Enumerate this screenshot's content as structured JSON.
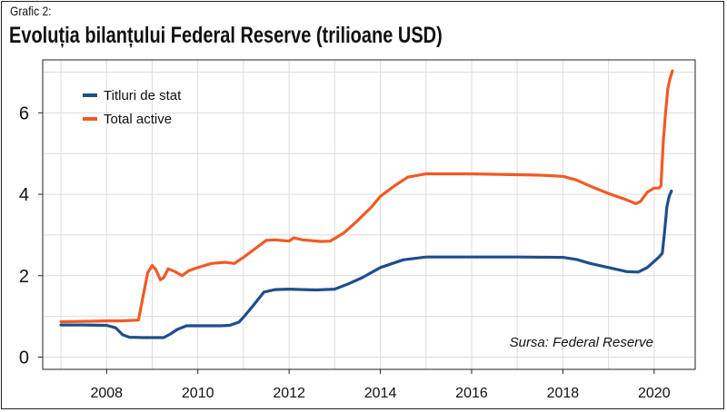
{
  "figure": {
    "label": "Grafic 2:",
    "title": "Evoluția bilanțului Federal Reserve (trilioane USD)",
    "source": "Sursa: Federal Reserve"
  },
  "colors": {
    "treasuries": "#1f4e8c",
    "total_assets": "#f15a24"
  },
  "chart_data": {
    "type": "line",
    "title": "Evoluția bilanțului Federal Reserve (trilioane USD)",
    "xlabel": "",
    "ylabel": "",
    "xlim": [
      2006.6,
      2020.9
    ],
    "ylim": [
      -0.3,
      7.3
    ],
    "x_ticks": [
      2008,
      2010,
      2012,
      2014,
      2016,
      2018,
      2020
    ],
    "y_ticks": [
      0,
      2,
      4,
      6
    ],
    "grid": true,
    "legend_position": "top-left",
    "source": "Sursa: Federal Reserve",
    "series": [
      {
        "name": "Titluri de stat",
        "color": "#1f4e8c",
        "points": [
          [
            2007.0,
            0.79
          ],
          [
            2007.5,
            0.79
          ],
          [
            2008.0,
            0.78
          ],
          [
            2008.2,
            0.72
          ],
          [
            2008.35,
            0.55
          ],
          [
            2008.5,
            0.49
          ],
          [
            2008.8,
            0.48
          ],
          [
            2009.0,
            0.48
          ],
          [
            2009.25,
            0.48
          ],
          [
            2009.4,
            0.57
          ],
          [
            2009.55,
            0.68
          ],
          [
            2009.75,
            0.77
          ],
          [
            2010.0,
            0.77
          ],
          [
            2010.5,
            0.77
          ],
          [
            2010.7,
            0.78
          ],
          [
            2010.9,
            0.86
          ],
          [
            2011.0,
            0.98
          ],
          [
            2011.2,
            1.25
          ],
          [
            2011.45,
            1.6
          ],
          [
            2011.7,
            1.66
          ],
          [
            2012.0,
            1.67
          ],
          [
            2012.3,
            1.66
          ],
          [
            2012.6,
            1.65
          ],
          [
            2013.0,
            1.67
          ],
          [
            2013.3,
            1.8
          ],
          [
            2013.6,
            1.95
          ],
          [
            2014.0,
            2.2
          ],
          [
            2014.5,
            2.39
          ],
          [
            2015.0,
            2.46
          ],
          [
            2016.0,
            2.46
          ],
          [
            2017.0,
            2.46
          ],
          [
            2018.0,
            2.45
          ],
          [
            2018.3,
            2.4
          ],
          [
            2018.6,
            2.3
          ],
          [
            2019.0,
            2.2
          ],
          [
            2019.4,
            2.1
          ],
          [
            2019.65,
            2.09
          ],
          [
            2019.85,
            2.2
          ],
          [
            2020.0,
            2.35
          ],
          [
            2020.1,
            2.45
          ],
          [
            2020.18,
            2.55
          ],
          [
            2020.23,
            3.1
          ],
          [
            2020.28,
            3.7
          ],
          [
            2020.33,
            3.95
          ],
          [
            2020.38,
            4.08
          ]
        ]
      },
      {
        "name": "Total active",
        "color": "#f15a24",
        "points": [
          [
            2007.0,
            0.87
          ],
          [
            2007.5,
            0.88
          ],
          [
            2008.0,
            0.89
          ],
          [
            2008.3,
            0.89
          ],
          [
            2008.7,
            0.91
          ],
          [
            2008.8,
            1.5
          ],
          [
            2008.9,
            2.07
          ],
          [
            2009.0,
            2.25
          ],
          [
            2009.08,
            2.15
          ],
          [
            2009.18,
            1.9
          ],
          [
            2009.25,
            1.95
          ],
          [
            2009.35,
            2.17
          ],
          [
            2009.5,
            2.1
          ],
          [
            2009.65,
            2.0
          ],
          [
            2009.8,
            2.12
          ],
          [
            2010.0,
            2.2
          ],
          [
            2010.3,
            2.3
          ],
          [
            2010.6,
            2.33
          ],
          [
            2010.8,
            2.3
          ],
          [
            2011.0,
            2.45
          ],
          [
            2011.3,
            2.7
          ],
          [
            2011.5,
            2.87
          ],
          [
            2011.7,
            2.88
          ],
          [
            2012.0,
            2.85
          ],
          [
            2012.1,
            2.93
          ],
          [
            2012.3,
            2.88
          ],
          [
            2012.7,
            2.84
          ],
          [
            2012.9,
            2.85
          ],
          [
            2013.2,
            3.05
          ],
          [
            2013.5,
            3.35
          ],
          [
            2013.8,
            3.68
          ],
          [
            2014.0,
            3.95
          ],
          [
            2014.3,
            4.2
          ],
          [
            2014.6,
            4.42
          ],
          [
            2015.0,
            4.5
          ],
          [
            2016.0,
            4.5
          ],
          [
            2017.0,
            4.48
          ],
          [
            2017.5,
            4.47
          ],
          [
            2018.0,
            4.44
          ],
          [
            2018.3,
            4.35
          ],
          [
            2018.6,
            4.2
          ],
          [
            2019.0,
            4.02
          ],
          [
            2019.4,
            3.86
          ],
          [
            2019.6,
            3.77
          ],
          [
            2019.7,
            3.82
          ],
          [
            2019.85,
            4.05
          ],
          [
            2020.0,
            4.15
          ],
          [
            2020.1,
            4.15
          ],
          [
            2020.15,
            4.2
          ],
          [
            2020.2,
            5.3
          ],
          [
            2020.25,
            6.0
          ],
          [
            2020.3,
            6.6
          ],
          [
            2020.35,
            6.85
          ],
          [
            2020.38,
            6.95
          ],
          [
            2020.4,
            7.03
          ]
        ]
      }
    ]
  }
}
